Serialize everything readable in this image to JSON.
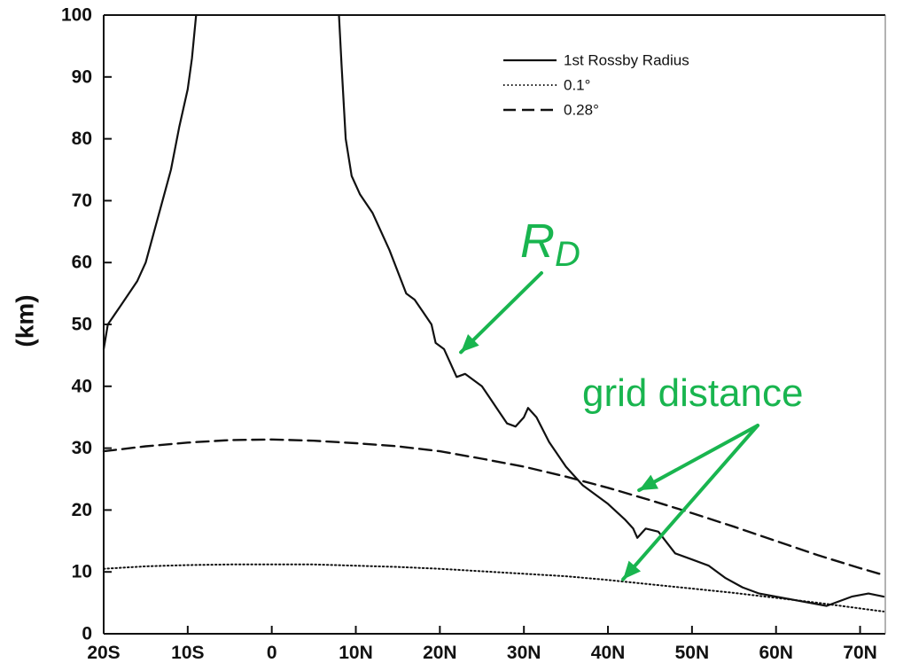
{
  "chart_data": {
    "type": "line",
    "ylabel": "(km)",
    "xlabel": "",
    "xlim": [
      -20,
      73
    ],
    "ylim": [
      0,
      100
    ],
    "x_ticks": [
      {
        "value": -20,
        "label": "20S"
      },
      {
        "value": -10,
        "label": "10S"
      },
      {
        "value": 0,
        "label": "0"
      },
      {
        "value": 10,
        "label": "10N"
      },
      {
        "value": 20,
        "label": "20N"
      },
      {
        "value": 30,
        "label": "30N"
      },
      {
        "value": 40,
        "label": "40N"
      },
      {
        "value": 50,
        "label": "50N"
      },
      {
        "value": 60,
        "label": "60N"
      },
      {
        "value": 70,
        "label": "70N"
      }
    ],
    "y_ticks": [
      {
        "value": 0,
        "label": "0"
      },
      {
        "value": 10,
        "label": "10"
      },
      {
        "value": 20,
        "label": "20"
      },
      {
        "value": 30,
        "label": "30"
      },
      {
        "value": 40,
        "label": "40"
      },
      {
        "value": 50,
        "label": "50"
      },
      {
        "value": 60,
        "label": "60"
      },
      {
        "value": 70,
        "label": "70"
      },
      {
        "value": 80,
        "label": "80"
      },
      {
        "value": 90,
        "label": "90"
      },
      {
        "value": 100,
        "label": "100"
      }
    ],
    "legend_position": "top-right",
    "series": [
      {
        "name": "1st Rossby Radius",
        "style": "solid",
        "segments": [
          [
            [
              -20,
              46
            ],
            [
              -19.5,
              50
            ],
            [
              -18,
              53
            ],
            [
              -16,
              57
            ],
            [
              -15,
              60
            ],
            [
              -14,
              65
            ],
            [
              -13,
              70
            ],
            [
              -12,
              75
            ],
            [
              -11,
              82
            ],
            [
              -10,
              88
            ],
            [
              -9.5,
              93
            ],
            [
              -9,
              100
            ]
          ],
          [
            [
              8,
              100
            ],
            [
              8.3,
              92
            ],
            [
              8.8,
              80
            ],
            [
              9.5,
              74
            ],
            [
              10.5,
              71
            ],
            [
              12,
              68
            ],
            [
              14,
              62
            ],
            [
              16,
              55
            ],
            [
              17,
              54
            ],
            [
              18,
              52
            ],
            [
              19,
              50
            ],
            [
              19.5,
              47
            ],
            [
              20.5,
              46
            ],
            [
              21.5,
              43
            ],
            [
              22,
              41.5
            ],
            [
              23,
              42
            ],
            [
              25,
              40
            ],
            [
              26,
              38
            ],
            [
              27,
              36
            ],
            [
              28,
              34
            ],
            [
              29,
              33.5
            ],
            [
              30,
              35
            ],
            [
              30.5,
              36.5
            ],
            [
              31.5,
              35
            ],
            [
              33,
              31
            ],
            [
              35,
              27
            ],
            [
              37,
              24
            ],
            [
              40,
              21
            ],
            [
              42,
              18.5
            ],
            [
              43,
              17
            ],
            [
              43.5,
              15.5
            ],
            [
              44.5,
              17
            ],
            [
              46,
              16.5
            ],
            [
              48,
              13
            ],
            [
              50,
              12
            ],
            [
              52,
              11
            ],
            [
              54,
              9
            ],
            [
              56,
              7.5
            ],
            [
              58,
              6.5
            ],
            [
              60,
              6
            ],
            [
              62,
              5.5
            ],
            [
              64,
              5
            ],
            [
              66,
              4.5
            ],
            [
              67,
              5
            ],
            [
              69,
              6
            ],
            [
              71,
              6.5
            ],
            [
              72.8,
              6
            ]
          ]
        ]
      },
      {
        "name": "0.1°",
        "style": "dotted",
        "segments": [
          [
            [
              -20,
              10.5
            ],
            [
              -15,
              10.9
            ],
            [
              -10,
              11.1
            ],
            [
              -5,
              11.2
            ],
            [
              0,
              11.2
            ],
            [
              5,
              11.2
            ],
            [
              10,
              11.0
            ],
            [
              15,
              10.8
            ],
            [
              20,
              10.5
            ],
            [
              25,
              10.1
            ],
            [
              30,
              9.7
            ],
            [
              35,
              9.3
            ],
            [
              40,
              8.7
            ],
            [
              45,
              8.0
            ],
            [
              50,
              7.3
            ],
            [
              55,
              6.6
            ],
            [
              60,
              5.8
            ],
            [
              65,
              5.0
            ],
            [
              70,
              4.1
            ],
            [
              72.8,
              3.6
            ]
          ]
        ]
      },
      {
        "name": "0.28°",
        "style": "dashed",
        "segments": [
          [
            [
              -20,
              29.5
            ],
            [
              -15,
              30.3
            ],
            [
              -10,
              30.9
            ],
            [
              -5,
              31.3
            ],
            [
              0,
              31.4
            ],
            [
              5,
              31.2
            ],
            [
              10,
              30.8
            ],
            [
              15,
              30.3
            ],
            [
              20,
              29.5
            ],
            [
              25,
              28.3
            ],
            [
              30,
              27.0
            ],
            [
              35,
              25.4
            ],
            [
              40,
              23.6
            ],
            [
              45,
              21.6
            ],
            [
              50,
              19.5
            ],
            [
              55,
              17.3
            ],
            [
              60,
              15.0
            ],
            [
              65,
              12.7
            ],
            [
              70,
              10.6
            ],
            [
              72.8,
              9.5
            ]
          ]
        ]
      }
    ]
  },
  "annotations": {
    "rd_main": "R",
    "rd_sub": "D",
    "grid_distance": "grid distance"
  },
  "colors": {
    "line": "#111111",
    "annotation": "#19b54f"
  }
}
